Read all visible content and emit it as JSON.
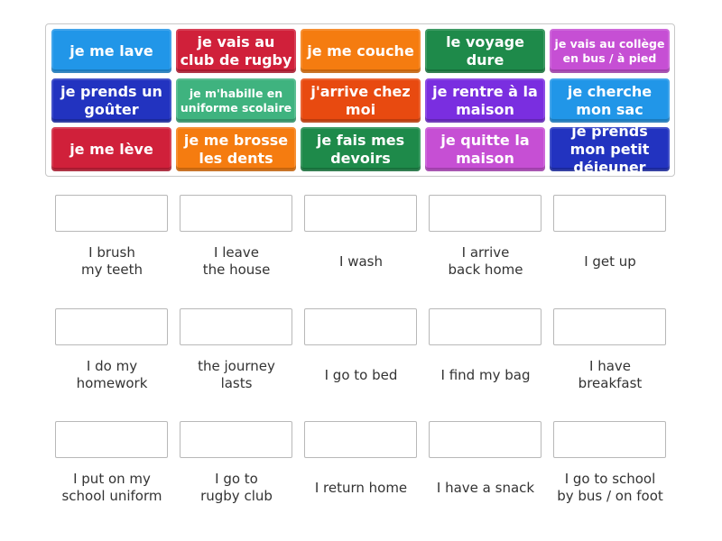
{
  "tiles": [
    {
      "text": "je me lave",
      "color": "#2196e8"
    },
    {
      "text": "je vais au club de rugby",
      "color": "#d0203a"
    },
    {
      "text": "je me couche",
      "color": "#f57c10"
    },
    {
      "text": "le voyage dure",
      "color": "#1e8a4a"
    },
    {
      "text": "je vais au collège en bus / à pied",
      "color": "#c64fd4",
      "small": true
    },
    {
      "text": "je prends un goûter",
      "color": "#2233c0"
    },
    {
      "text": "je m'habille en uniforme scolaire",
      "color": "#3fb37f",
      "small": true
    },
    {
      "text": "j'arrive chez moi",
      "color": "#e84a10"
    },
    {
      "text": "je rentre à la maison",
      "color": "#7a2ee0"
    },
    {
      "text": "je cherche mon sac",
      "color": "#2196e8"
    },
    {
      "text": "je me lève",
      "color": "#d0203a"
    },
    {
      "text": "je me brosse les dents",
      "color": "#f57c10"
    },
    {
      "text": "je fais mes devoirs",
      "color": "#1e8a4a"
    },
    {
      "text": "je quitte la maison",
      "color": "#c64fd4"
    },
    {
      "text": "je prends mon petit déjeuner",
      "color": "#2233c0"
    }
  ],
  "targets": [
    "I brush\nmy teeth",
    "I leave\nthe house",
    "I wash",
    "I arrive\nback home",
    "I get up",
    "I do my\nhomework",
    "the journey\nlasts",
    "I go to bed",
    "I find my bag",
    "I have\nbreakfast",
    "I put on my\nschool uniform",
    "I go to\nrugby club",
    "I return home",
    "I have a snack",
    "I go to school\nby bus / on foot"
  ]
}
